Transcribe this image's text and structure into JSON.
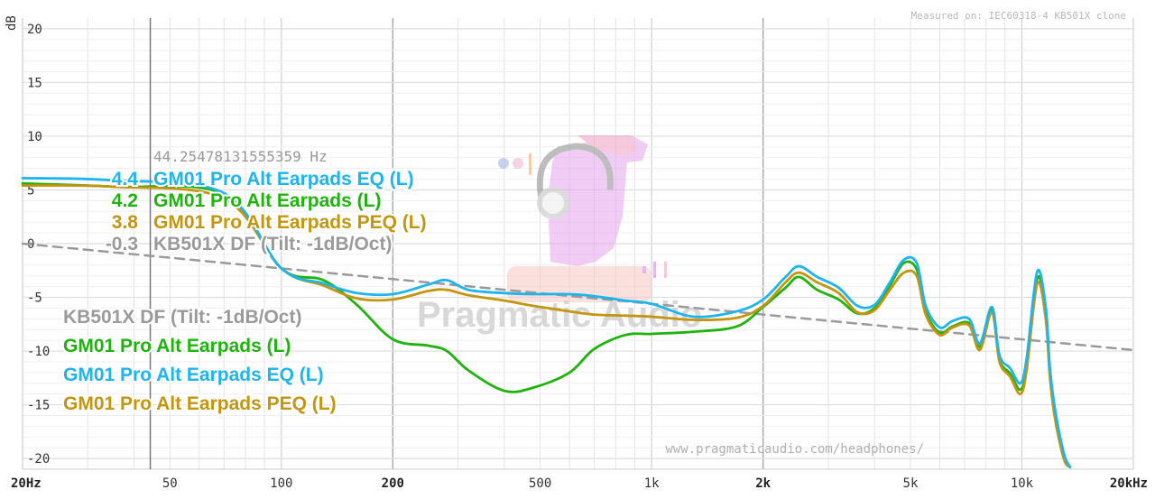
{
  "chart_data": {
    "type": "line",
    "ylabel": "dB",
    "ylim": [
      -21,
      21
    ],
    "xlim": [
      20,
      20000
    ],
    "x_scale": "log",
    "grid": true,
    "y_ticks": [
      "20",
      "15",
      "10",
      "5",
      "0",
      "-5",
      "-10",
      "-15",
      "-20"
    ],
    "y_tick_values": [
      20,
      15,
      10,
      5,
      0,
      -5,
      -10,
      -15,
      -20
    ],
    "x_ticks": [
      {
        "label": "20Hz",
        "value": 20
      },
      {
        "label": "50",
        "value": 50
      },
      {
        "label": "100",
        "value": 100
      },
      {
        "label": "200",
        "value": 200
      },
      {
        "label": "500",
        "value": 500
      },
      {
        "label": "1k",
        "value": 1000
      },
      {
        "label": "2k",
        "value": 2000
      },
      {
        "label": "5k",
        "value": 5000
      },
      {
        "label": "10k",
        "value": 10000
      },
      {
        "label": "20kHz",
        "value": 20000
      }
    ],
    "cursor": {
      "freq": 44.25478131555359,
      "label": "44.25478131555359 Hz",
      "readouts": [
        {
          "value": "4.4",
          "name": "GM01 Pro Alt Earpads EQ (L)",
          "color": "#1eb4ee"
        },
        {
          "value": "4.2",
          "name": "GM01 Pro Alt Earpads (L)",
          "color": "#1fb30d"
        },
        {
          "value": "3.8",
          "name": "GM01 Pro Alt Earpads PEQ (L)",
          "color": "#c4950e"
        },
        {
          "value": "-0.3",
          "name": "KB501X DF (Tilt: -1dB/Oct)",
          "color": "#9a9a9a"
        }
      ]
    },
    "legend": [
      {
        "name": "KB501X DF (Tilt: -1dB/Oct)",
        "color": "#9a9a9a"
      },
      {
        "name": "GM01 Pro Alt Earpads (L)",
        "color": "#1fb30d"
      },
      {
        "name": "GM01 Pro Alt Earpads EQ (L)",
        "color": "#1eb4ee"
      },
      {
        "name": "GM01 Pro Alt Earpads PEQ (L)",
        "color": "#c4950e"
      }
    ],
    "legend_position": "bottom-left",
    "series": [
      {
        "name": "KB501X DF (Tilt: -1dB/Oct)",
        "color": "#9a9a9a",
        "dashed": true,
        "x": [
          20,
          20000
        ],
        "y": [
          0.0,
          -9.9
        ]
      },
      {
        "name": "GM01 Pro Alt Earpads (L)",
        "color": "#1fb30d",
        "x": [
          20,
          35,
          70,
          100,
          130,
          160,
          200,
          250,
          280,
          320,
          400,
          480,
          600,
          700,
          850,
          1000,
          1300,
          1700,
          2000,
          2300,
          2500,
          2800,
          3200,
          3600,
          4000,
          4400,
          4800,
          5200,
          5500,
          6000,
          6500,
          7200,
          7700,
          8300,
          8700,
          9300,
          9900,
          10300,
          11000,
          11600,
          11900,
          12300,
          13000,
          13500
        ],
        "y": [
          5.6,
          5.3,
          4.6,
          -2.3,
          -3.4,
          -5.7,
          -8.9,
          -9.5,
          -10.0,
          -11.8,
          -13.7,
          -13.4,
          -12.0,
          -9.8,
          -8.5,
          -8.4,
          -8.2,
          -7.7,
          -5.9,
          -4.1,
          -3.1,
          -4.3,
          -5.2,
          -6.5,
          -6.0,
          -3.9,
          -1.8,
          -2.4,
          -6.3,
          -8.3,
          -7.7,
          -7.4,
          -9.6,
          -6.1,
          -10.8,
          -12.1,
          -13.6,
          -11.5,
          -3.2,
          -6.5,
          -12.0,
          -16.0,
          -20.0,
          -20.8
        ]
      },
      {
        "name": "GM01 Pro Alt Earpads EQ (L)",
        "color": "#1eb4ee",
        "x": [
          20,
          35,
          70,
          100,
          130,
          160,
          200,
          250,
          280,
          320,
          400,
          480,
          600,
          700,
          850,
          1000,
          1300,
          1700,
          2000,
          2300,
          2500,
          2800,
          3200,
          3600,
          4000,
          4400,
          4800,
          5200,
          5500,
          6000,
          6500,
          7200,
          7700,
          8300,
          8700,
          9300,
          9900,
          10300,
          11000,
          11600,
          11900,
          12300,
          13000,
          13500
        ],
        "y": [
          6.1,
          5.9,
          4.7,
          -2.3,
          -3.7,
          -4.6,
          -4.7,
          -3.8,
          -3.4,
          -4.3,
          -4.6,
          -4.7,
          -4.7,
          -4.9,
          -5.3,
          -5.6,
          -6.8,
          -6.3,
          -5.2,
          -3.1,
          -2.1,
          -3.1,
          -4.1,
          -5.8,
          -5.7,
          -3.6,
          -1.5,
          -1.8,
          -5.8,
          -7.8,
          -7.2,
          -7.0,
          -9.3,
          -5.9,
          -10.4,
          -11.6,
          -13.0,
          -10.7,
          -2.6,
          -5.9,
          -11.5,
          -15.5,
          -19.6,
          -20.8
        ]
      },
      {
        "name": "GM01 Pro Alt Earpads PEQ (L)",
        "color": "#c4950e",
        "x": [
          20,
          35,
          70,
          100,
          130,
          160,
          200,
          250,
          280,
          320,
          400,
          480,
          600,
          700,
          850,
          1000,
          1300,
          1700,
          2000,
          2300,
          2500,
          2800,
          3200,
          3600,
          4000,
          4400,
          4800,
          5200,
          5500,
          6000,
          6500,
          7200,
          7700,
          8300,
          8700,
          9300,
          9900,
          10300,
          11000,
          11600,
          11900,
          12300,
          13000,
          13500
        ],
        "y": [
          5.4,
          5.3,
          4.2,
          -2.3,
          -3.9,
          -5.1,
          -5.2,
          -4.4,
          -4.3,
          -4.8,
          -5.3,
          -5.8,
          -6.3,
          -6.6,
          -6.7,
          -6.8,
          -7.1,
          -6.9,
          -5.8,
          -3.6,
          -2.7,
          -3.6,
          -4.6,
          -6.4,
          -6.2,
          -4.3,
          -2.7,
          -3.0,
          -6.6,
          -8.5,
          -7.8,
          -7.6,
          -9.9,
          -6.4,
          -11.0,
          -12.4,
          -14.0,
          -11.8,
          -3.7,
          -7.0,
          -12.4,
          -16.4,
          -20.1,
          -20.8
        ]
      }
    ]
  },
  "overlay": {
    "meta": "Measured on: IEC60318-4 KB501X clone",
    "url": "www.pragmaticaudio.com/headphones/",
    "watermark": "Pragmatic Audio"
  }
}
